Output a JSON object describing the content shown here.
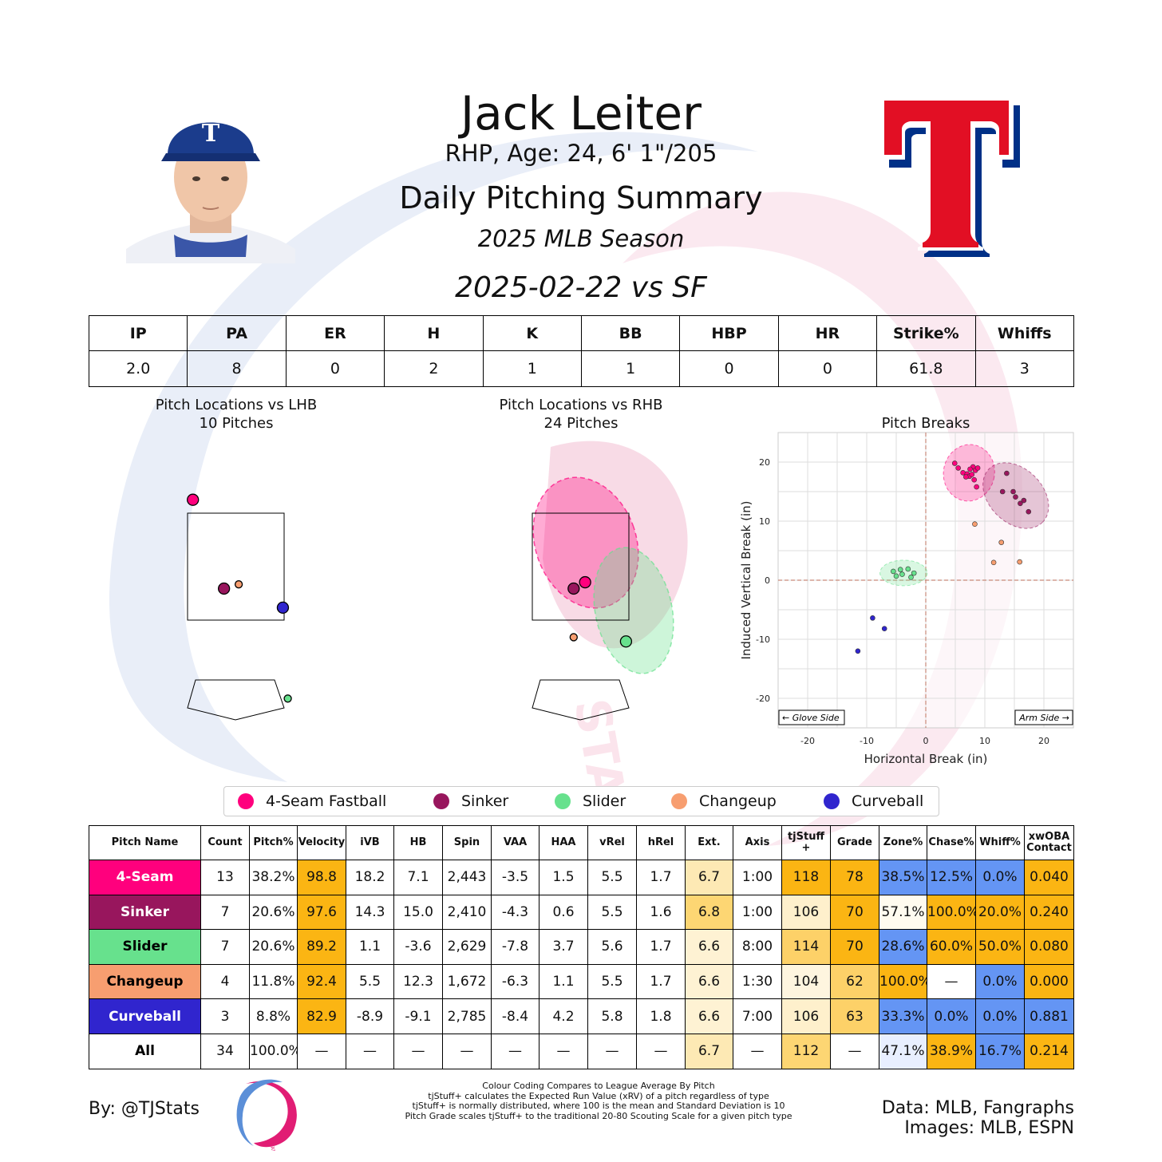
{
  "header": {
    "player_name": "Jack Leiter",
    "player_info": "RHP, Age: 24, 6' 1\"/205",
    "summary_title": "Daily Pitching Summary",
    "season_title": "2025 MLB Season",
    "game_title": "2025-02-22 vs SF"
  },
  "team_logo": {
    "letter": "T",
    "colors": {
      "red": "#e20f24",
      "navy": "#003087"
    }
  },
  "stats_table": {
    "headers": [
      "IP",
      "PA",
      "ER",
      "H",
      "K",
      "BB",
      "HBP",
      "HR",
      "Strike%",
      "Whiffs"
    ],
    "values": [
      "2.0",
      "8",
      "0",
      "2",
      "1",
      "1",
      "0",
      "0",
      "61.8",
      "3"
    ]
  },
  "pitch_colors": {
    "4-Seam Fastball": "#ff007d",
    "Sinker": "#98165d",
    "Slider": "#67e18d",
    "Changeup": "#f79e70",
    "Curveball": "#3025ce"
  },
  "chart_data": [
    {
      "type": "scatter",
      "title": "Pitch Locations vs LHB\n10 Pitches",
      "points": [
        {
          "pitch": "4-Seam Fastball",
          "x": -1.3,
          "y": 4.6
        },
        {
          "pitch": "Sinker",
          "x": -0.35,
          "y": 2.5
        },
        {
          "pitch": "Changeup",
          "x": 0.1,
          "y": 2.6
        },
        {
          "pitch": "Curveball",
          "x": 1.45,
          "y": 2.05
        },
        {
          "pitch": "Slider",
          "x": 1.6,
          "y": -0.1
        }
      ]
    },
    {
      "type": "scatter",
      "title": "Pitch Locations vs RHB\n24 Pitches",
      "points": [
        {
          "pitch": "4-Seam Fastball",
          "x": 0.15,
          "y": 2.65
        },
        {
          "pitch": "Sinker",
          "x": -0.2,
          "y": 2.5
        },
        {
          "pitch": "Changeup",
          "x": -0.2,
          "y": 1.35
        },
        {
          "pitch": "Slider",
          "x": 1.4,
          "y": 1.25
        }
      ]
    },
    {
      "type": "scatter",
      "title": "Pitch Breaks",
      "xlabel": "Horizontal Break (in)",
      "ylabel": "Induced Vertical Break (in)",
      "xlim": [
        -25,
        25
      ],
      "ylim": [
        -25,
        25
      ],
      "xticks": [
        -20,
        -10,
        0,
        10,
        20
      ],
      "yticks": [
        -20,
        -10,
        0,
        10,
        20
      ],
      "annotations": {
        "left": "← Glove Side",
        "right": "Arm Side →"
      },
      "series": [
        {
          "name": "4-Seam Fastball",
          "points": [
            [
              4.9,
              19.8
            ],
            [
              5.5,
              19.0
            ],
            [
              6.3,
              18.2
            ],
            [
              7.0,
              18.0
            ],
            [
              7.4,
              17.6
            ],
            [
              7.8,
              17.9
            ],
            [
              8.0,
              19.2
            ],
            [
              8.4,
              18.6
            ],
            [
              8.8,
              19.0
            ],
            [
              8.2,
              17.0
            ],
            [
              6.8,
              17.5
            ],
            [
              7.5,
              18.8
            ],
            [
              8.6,
              15.8
            ]
          ]
        },
        {
          "name": "Sinker",
          "points": [
            [
              13.0,
              15.0
            ],
            [
              13.7,
              18.1
            ],
            [
              14.8,
              15.0
            ],
            [
              15.2,
              14.1
            ],
            [
              16.0,
              13.0
            ],
            [
              16.6,
              13.5
            ],
            [
              17.4,
              11.6
            ]
          ]
        },
        {
          "name": "Slider",
          "points": [
            [
              -5.5,
              1.5
            ],
            [
              -5.0,
              0.7
            ],
            [
              -4.3,
              1.8
            ],
            [
              -4.0,
              1.0
            ],
            [
              -3.0,
              1.9
            ],
            [
              -2.5,
              0.5
            ],
            [
              -2.0,
              1.2
            ]
          ]
        },
        {
          "name": "Changeup",
          "points": [
            [
              8.3,
              9.5
            ],
            [
              12.8,
              6.4
            ],
            [
              11.5,
              3.0
            ],
            [
              15.9,
              3.1
            ]
          ]
        },
        {
          "name": "Curveball",
          "points": [
            [
              -9.0,
              -6.4
            ],
            [
              -7.0,
              -8.2
            ],
            [
              -11.5,
              -12.0
            ]
          ]
        }
      ]
    },
    {
      "type": "table",
      "headers": [
        "Pitch Name",
        "Count",
        "Pitch%",
        "Velocity",
        "iVB",
        "HB",
        "Spin",
        "VAA",
        "HAA",
        "vRel",
        "hRel",
        "Ext.",
        "Axis",
        "tjStuff +",
        "Grade",
        "Zone%",
        "Chase%",
        "Whiff%",
        "xwOBA Contact"
      ],
      "rows": [
        {
          "label": "4-Seam",
          "label_color": "#ff007d",
          "label_text": "#ffffff",
          "cells": [
            "13",
            "38.2%",
            "98.8",
            "18.2",
            "7.1",
            "2,443",
            "-3.5",
            "1.5",
            "5.5",
            "1.7",
            "6.7",
            "1:00",
            "118",
            "78",
            "38.5%",
            "12.5%",
            "0.0%",
            "0.040"
          ],
          "colors": [
            "",
            "",
            "#fbb513",
            "",
            "",
            "",
            "",
            "",
            "",
            "",
            "#fde9b4",
            "",
            "#fbb513",
            "#fbb513",
            "#6495f4",
            "#6495f4",
            "#6495f4",
            "#fbb513"
          ]
        },
        {
          "label": "Sinker",
          "label_color": "#98165d",
          "label_text": "#ffffff",
          "cells": [
            "7",
            "20.6%",
            "97.6",
            "14.3",
            "15.0",
            "2,410",
            "-4.3",
            "0.6",
            "5.5",
            "1.6",
            "6.8",
            "1:00",
            "106",
            "70",
            "57.1%",
            "100.0%",
            "20.0%",
            "0.240"
          ],
          "colors": [
            "",
            "",
            "#fbb513",
            "",
            "",
            "",
            "",
            "",
            "",
            "",
            "#fdd673",
            "",
            "#fef0cc",
            "#fbb513",
            "#fffbef",
            "#fbb513",
            "#fbb513",
            "#fbb513"
          ]
        },
        {
          "label": "Slider",
          "label_color": "#67e18d",
          "label_text": "#000000",
          "cells": [
            "7",
            "20.6%",
            "89.2",
            "1.1",
            "-3.6",
            "2,629",
            "-7.8",
            "3.7",
            "5.6",
            "1.7",
            "6.6",
            "8:00",
            "114",
            "70",
            "28.6%",
            "60.0%",
            "50.0%",
            "0.080"
          ],
          "colors": [
            "",
            "",
            "#fbb513",
            "",
            "",
            "",
            "",
            "",
            "",
            "",
            "#fef2d3",
            "",
            "#fdd168",
            "#fbb513",
            "#6495f4",
            "#fbb513",
            "#fbb513",
            "#fbb513"
          ]
        },
        {
          "label": "Changeup",
          "label_color": "#f79e70",
          "label_text": "#000000",
          "cells": [
            "4",
            "11.8%",
            "92.4",
            "5.5",
            "12.3",
            "1,672",
            "-6.3",
            "1.1",
            "5.5",
            "1.7",
            "6.6",
            "1:30",
            "104",
            "62",
            "100.0%",
            "—",
            "0.0%",
            "0.000"
          ],
          "colors": [
            "",
            "",
            "#fbb513",
            "",
            "",
            "",
            "",
            "",
            "",
            "",
            "#fef2d3",
            "",
            "#fef5df",
            "#fdd168",
            "#fbb513",
            "",
            "#6495f4",
            "#fbb513"
          ]
        },
        {
          "label": "Curveball",
          "label_color": "#3025ce",
          "label_text": "#ffffff",
          "cells": [
            "3",
            "8.8%",
            "82.9",
            "-8.9",
            "-9.1",
            "2,785",
            "-8.4",
            "4.2",
            "5.8",
            "1.8",
            "6.6",
            "7:00",
            "106",
            "63",
            "33.3%",
            "0.0%",
            "0.0%",
            "0.881"
          ],
          "colors": [
            "",
            "",
            "#fbb513",
            "",
            "",
            "",
            "",
            "",
            "",
            "",
            "#fef2d3",
            "",
            "#fef0cc",
            "#fdd168",
            "#6495f4",
            "#6495f4",
            "#6495f4",
            "#6495f4"
          ]
        },
        {
          "label": "All",
          "label_color": "#ffffff",
          "label_text": "#000000",
          "cells": [
            "34",
            "100.0%",
            "—",
            "—",
            "—",
            "—",
            "—",
            "—",
            "—",
            "—",
            "6.7",
            "—",
            "112",
            "—",
            "47.1%",
            "38.9%",
            "16.7%",
            "0.214"
          ],
          "colors": [
            "",
            "",
            "",
            "",
            "",
            "",
            "",
            "",
            "",
            "",
            "#fde9b4",
            "",
            "#fdd673",
            "",
            "#e8efff",
            "#fbb513",
            "#6495f4",
            "#fbb513"
          ]
        }
      ]
    }
  ],
  "legend": [
    "4-Seam Fastball",
    "Sinker",
    "Slider",
    "Changeup",
    "Curveball"
  ],
  "footer": {
    "byline": "By: @TJStats",
    "data_credit": "Data: MLB, Fangraphs",
    "image_credit": "Images: MLB, ESPN",
    "notes": [
      "Colour Coding Compares to League Average By Pitch",
      "tjStuff+ calculates the Expected Run Value (xRV) of a pitch regardless of type",
      "tjStuff+ is normally distributed, where 100 is the mean and Standard Deviation is 10",
      "Pitch Grade scales tjStuff+ to the traditional 20-80 Scouting Scale for a given pitch type"
    ],
    "logo_text": "STATS"
  }
}
